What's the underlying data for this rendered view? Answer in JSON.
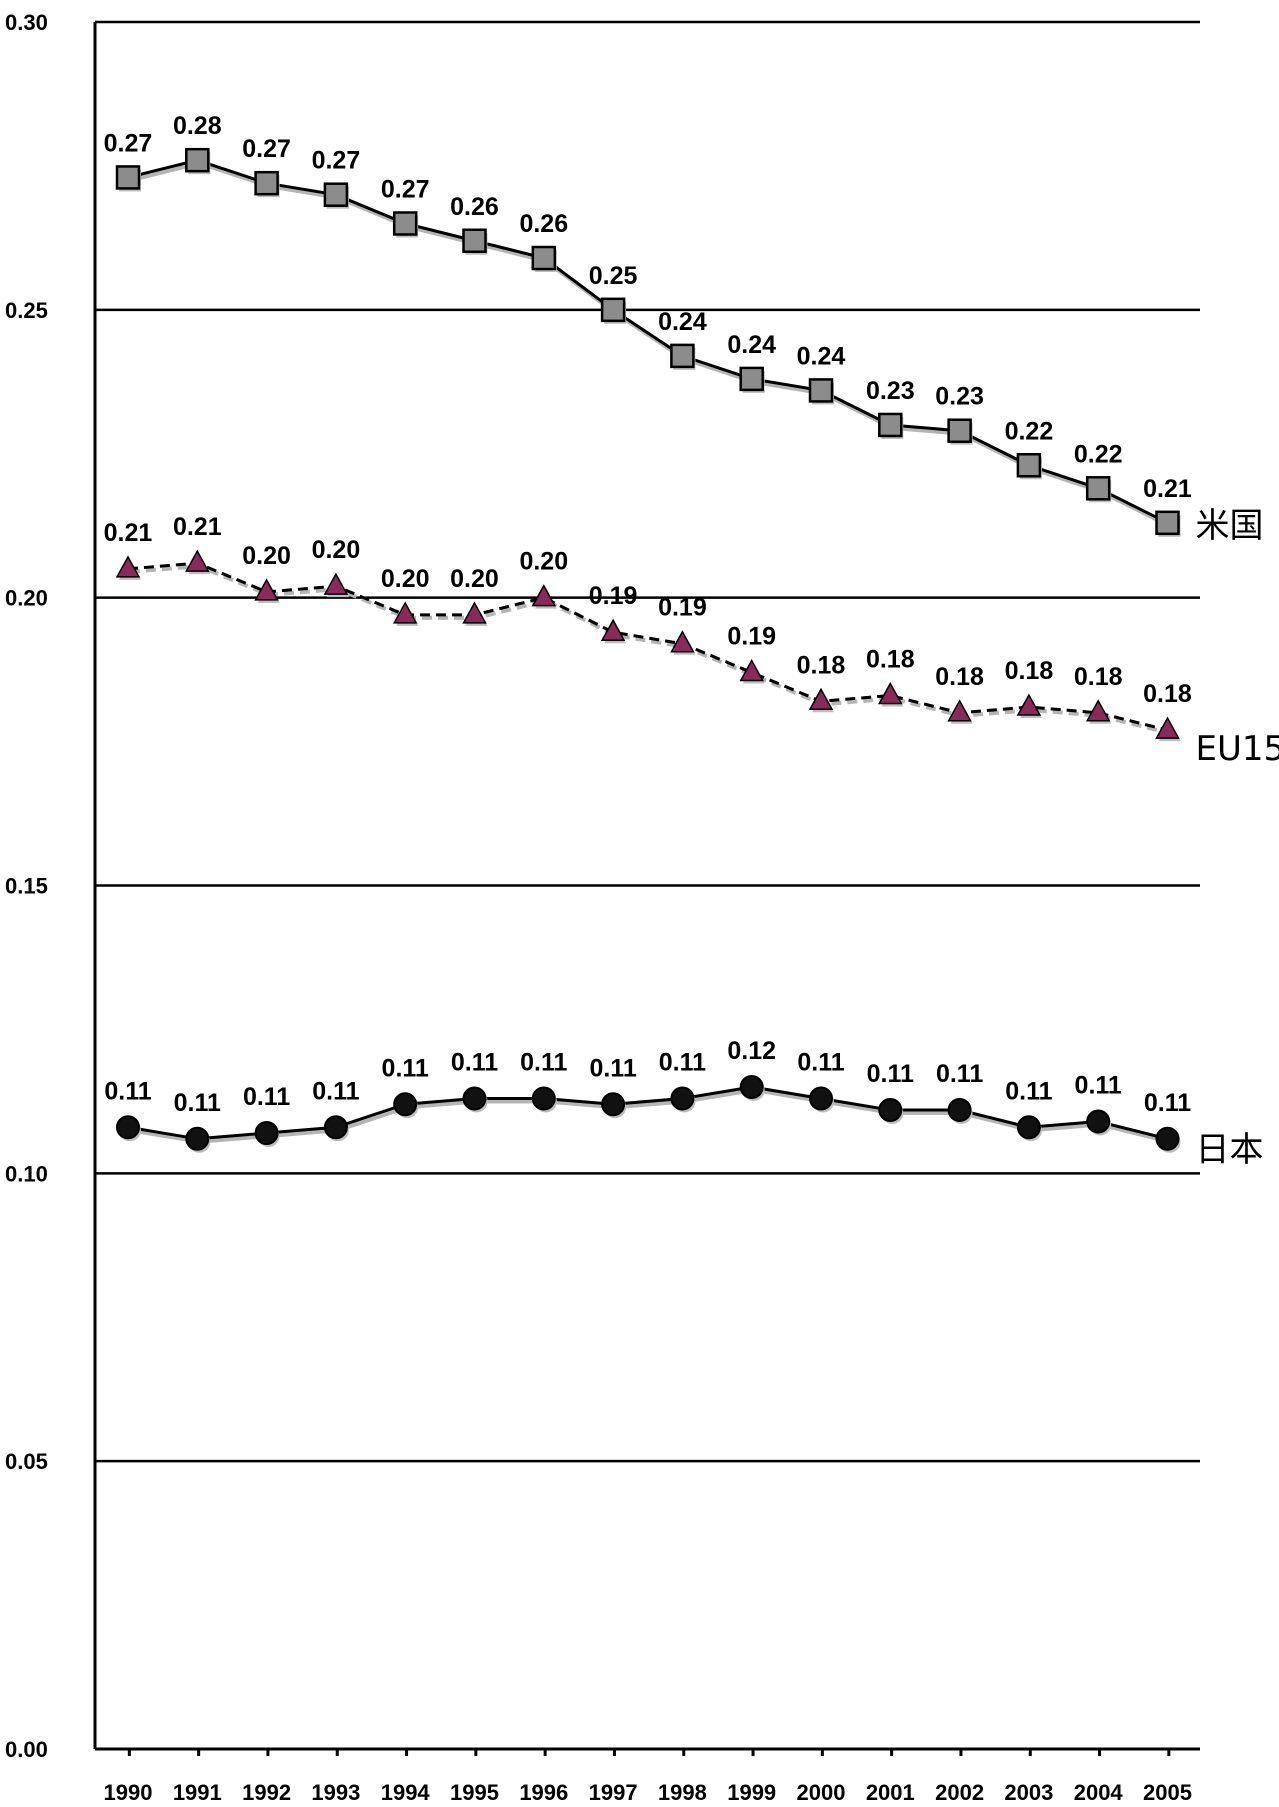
{
  "chart_data": {
    "type": "line",
    "ylim": [
      0.0,
      0.3
    ],
    "yticks": [
      "0.00",
      "0.05",
      "0.10",
      "0.15",
      "0.20",
      "0.25",
      "0.30"
    ],
    "grid": true,
    "categories": [
      "1990",
      "1991",
      "1992",
      "1993",
      "1994",
      "1995",
      "1996",
      "1997",
      "1998",
      "1999",
      "2000",
      "2001",
      "2002",
      "2003",
      "2004",
      "2005"
    ],
    "series": [
      {
        "name": "米国",
        "marker": "square",
        "line_style": "solid",
        "marker_color": "#8c8c8c",
        "values": [
          0.273,
          0.276,
          0.272,
          0.27,
          0.265,
          0.262,
          0.259,
          0.25,
          0.242,
          0.238,
          0.236,
          0.23,
          0.229,
          0.223,
          0.219,
          0.213
        ],
        "labels": [
          "0.27",
          "0.28",
          "0.27",
          "0.27",
          "0.27",
          "0.26",
          "0.26",
          "0.25",
          "0.24",
          "0.24",
          "0.24",
          "0.23",
          "0.23",
          "0.22",
          "0.22",
          "0.21"
        ]
      },
      {
        "name": "EU15",
        "marker": "triangle",
        "line_style": "dashed",
        "marker_color": "#8b2a5a",
        "values": [
          0.205,
          0.206,
          0.201,
          0.202,
          0.197,
          0.197,
          0.2,
          0.194,
          0.192,
          0.187,
          0.182,
          0.183,
          0.18,
          0.181,
          0.18,
          0.177
        ],
        "labels": [
          "0.21",
          "0.21",
          "0.20",
          "0.20",
          "0.20",
          "0.20",
          "0.20",
          "0.19",
          "0.19",
          "0.19",
          "0.18",
          "0.18",
          "0.18",
          "0.18",
          "0.18",
          "0.18"
        ]
      },
      {
        "name": "日本",
        "marker": "circle",
        "line_style": "solid",
        "marker_color": "#111111",
        "values": [
          0.108,
          0.106,
          0.107,
          0.108,
          0.112,
          0.113,
          0.113,
          0.112,
          0.113,
          0.115,
          0.113,
          0.111,
          0.111,
          0.108,
          0.109,
          0.106
        ],
        "labels": [
          "0.11",
          "0.11",
          "0.11",
          "0.11",
          "0.11",
          "0.11",
          "0.11",
          "0.11",
          "0.11",
          "0.12",
          "0.11",
          "0.11",
          "0.11",
          "0.11",
          "0.11",
          "0.11"
        ]
      }
    ]
  }
}
